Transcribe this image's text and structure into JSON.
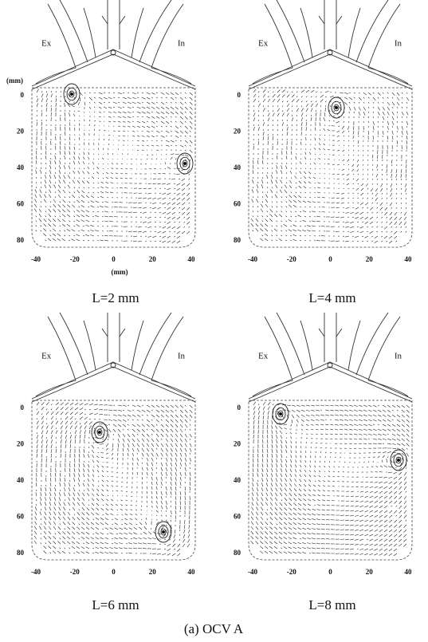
{
  "caption": "(a) OCV A",
  "panels": [
    {
      "caption": "L=2 mm",
      "exhaust_label": "Ex",
      "intake_label": "In",
      "y_unit": "(mm)",
      "x_unit": "(mm)",
      "yticks": [
        "0",
        "20",
        "40",
        "60",
        "80"
      ],
      "xticks": [
        "-40",
        "-20",
        "0",
        "20",
        "40"
      ]
    },
    {
      "caption": "L=4 mm",
      "exhaust_label": "Ex",
      "intake_label": "In",
      "yticks": [
        "0",
        "20",
        "40",
        "60",
        "80"
      ],
      "xticks": [
        "-40",
        "-20",
        "0",
        "20",
        "40"
      ]
    },
    {
      "caption": "L=6 mm",
      "exhaust_label": "Ex",
      "intake_label": "In",
      "yticks": [
        "0",
        "20",
        "40",
        "60",
        "80"
      ],
      "xticks": [
        "-40",
        "-20",
        "0",
        "20",
        "40"
      ]
    },
    {
      "caption": "L=8 mm",
      "exhaust_label": "Ex",
      "intake_label": "In",
      "yticks": [
        "0",
        "20",
        "40",
        "60",
        "80"
      ],
      "xticks": [
        "-40",
        "-20",
        "0",
        "20",
        "40"
      ]
    }
  ]
}
